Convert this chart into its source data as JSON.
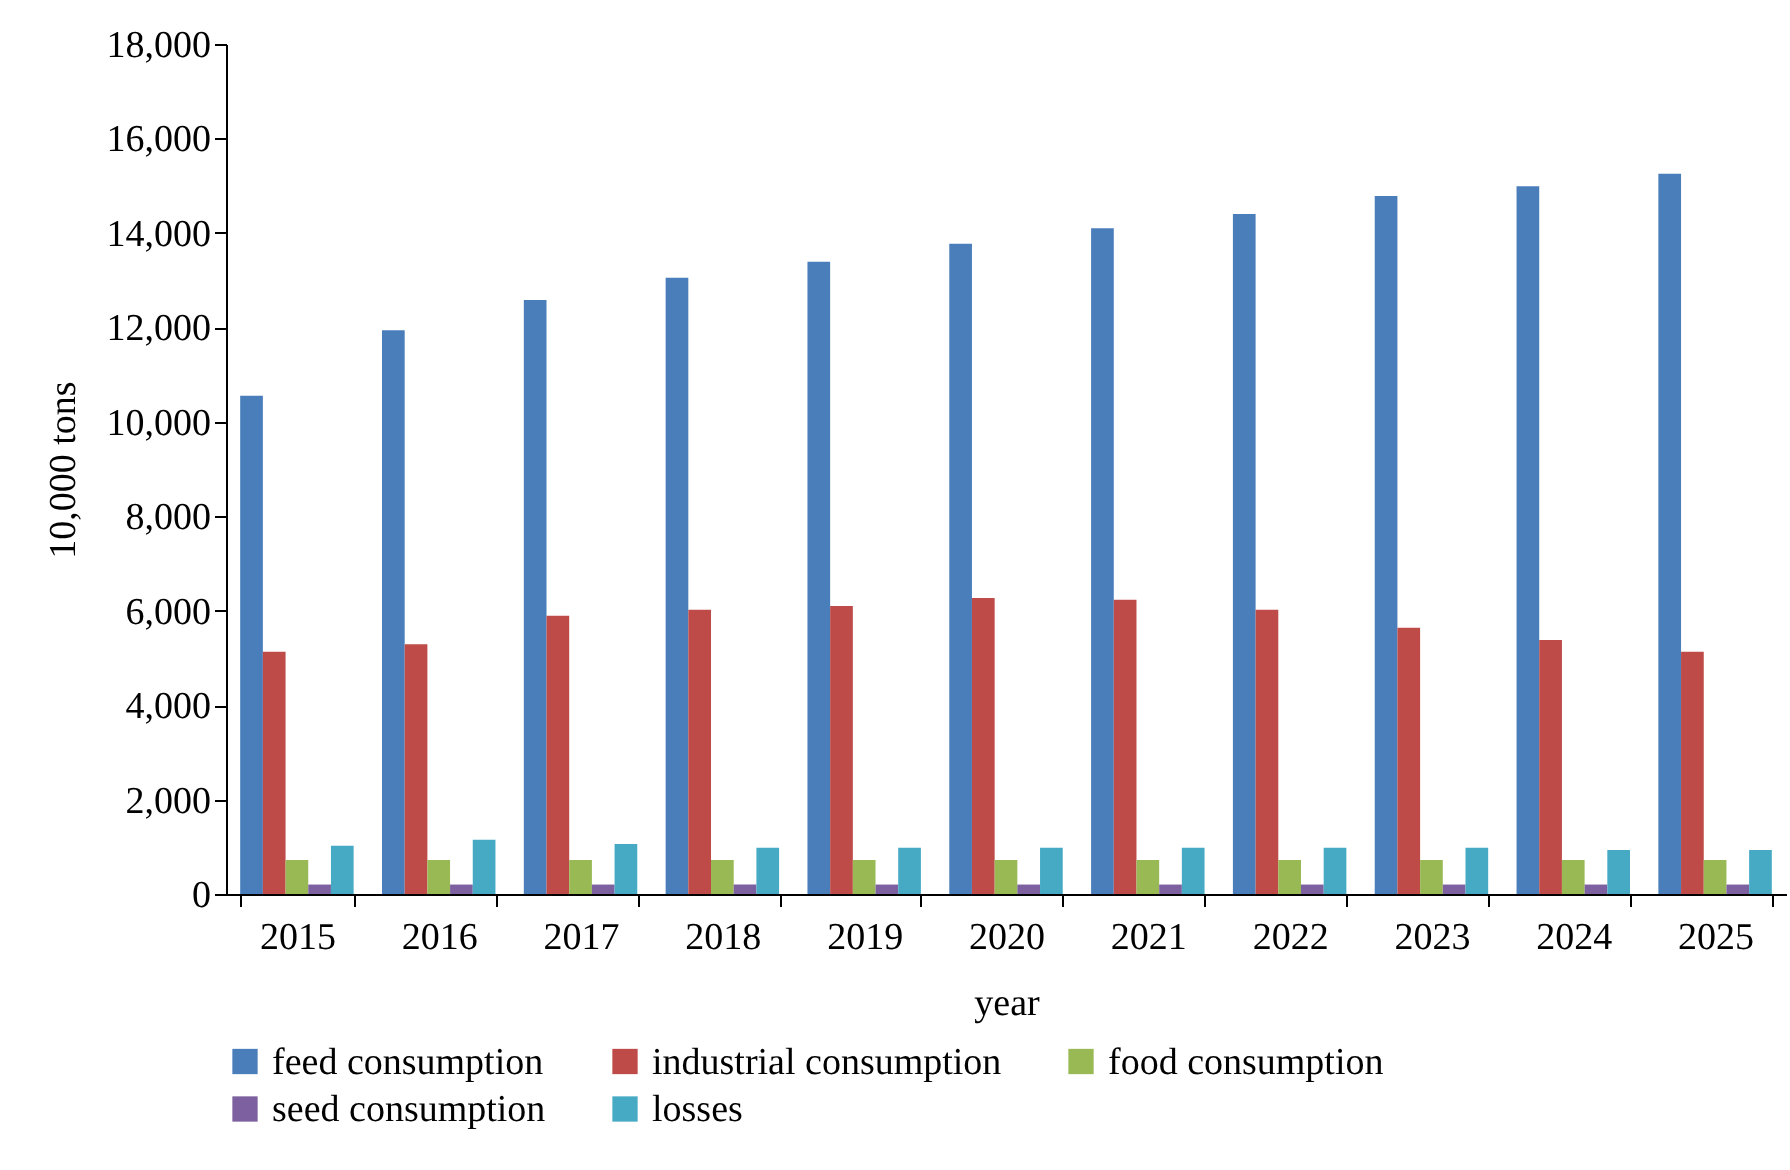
{
  "chart_data": {
    "type": "bar",
    "xlabel": "year",
    "ylabel": "10,000 tons",
    "categories": [
      "2015",
      "2016",
      "2017",
      "2018",
      "2019",
      "2020",
      "2021",
      "2022",
      "2023",
      "2024",
      "2025"
    ],
    "series": [
      {
        "name": "feed consumption",
        "color": "#4a7ebb",
        "values": [
          10550,
          11940,
          12580,
          13050,
          13390,
          13770,
          14100,
          14400,
          14780,
          14990,
          15250
        ]
      },
      {
        "name": "industrial consumption",
        "color": "#be4b48",
        "values": [
          5130,
          5290,
          5890,
          6020,
          6100,
          6270,
          6230,
          6020,
          5640,
          5380,
          5130
        ]
      },
      {
        "name": "food consumption",
        "color": "#98b954",
        "values": [
          720,
          720,
          720,
          720,
          720,
          720,
          720,
          720,
          720,
          720,
          720
        ]
      },
      {
        "name": "seed consumption",
        "color": "#7d60a0",
        "values": [
          200,
          200,
          200,
          200,
          200,
          200,
          200,
          200,
          200,
          200,
          200
        ]
      },
      {
        "name": "losses",
        "color": "#46aac5",
        "values": [
          1020,
          1150,
          1060,
          980,
          980,
          980,
          980,
          980,
          980,
          930,
          930
        ]
      }
    ],
    "ylim": [
      0,
      18000
    ],
    "yticks": [
      0,
      {
        "value": 2000,
        "label": "2,000"
      },
      {
        "value": 4000,
        "label": "4,000"
      },
      {
        "value": 6000,
        "label": "6,000"
      },
      {
        "value": 8000,
        "label": "8,000"
      },
      {
        "value": 10000,
        "label": "10,000"
      },
      {
        "value": 12000,
        "label": "12,000"
      },
      {
        "value": 14000,
        "label": "14,000"
      },
      {
        "value": 16000,
        "label": "16,000"
      },
      {
        "value": 18000,
        "label": "18,000"
      }
    ],
    "grid": false,
    "legend": "bottom"
  }
}
